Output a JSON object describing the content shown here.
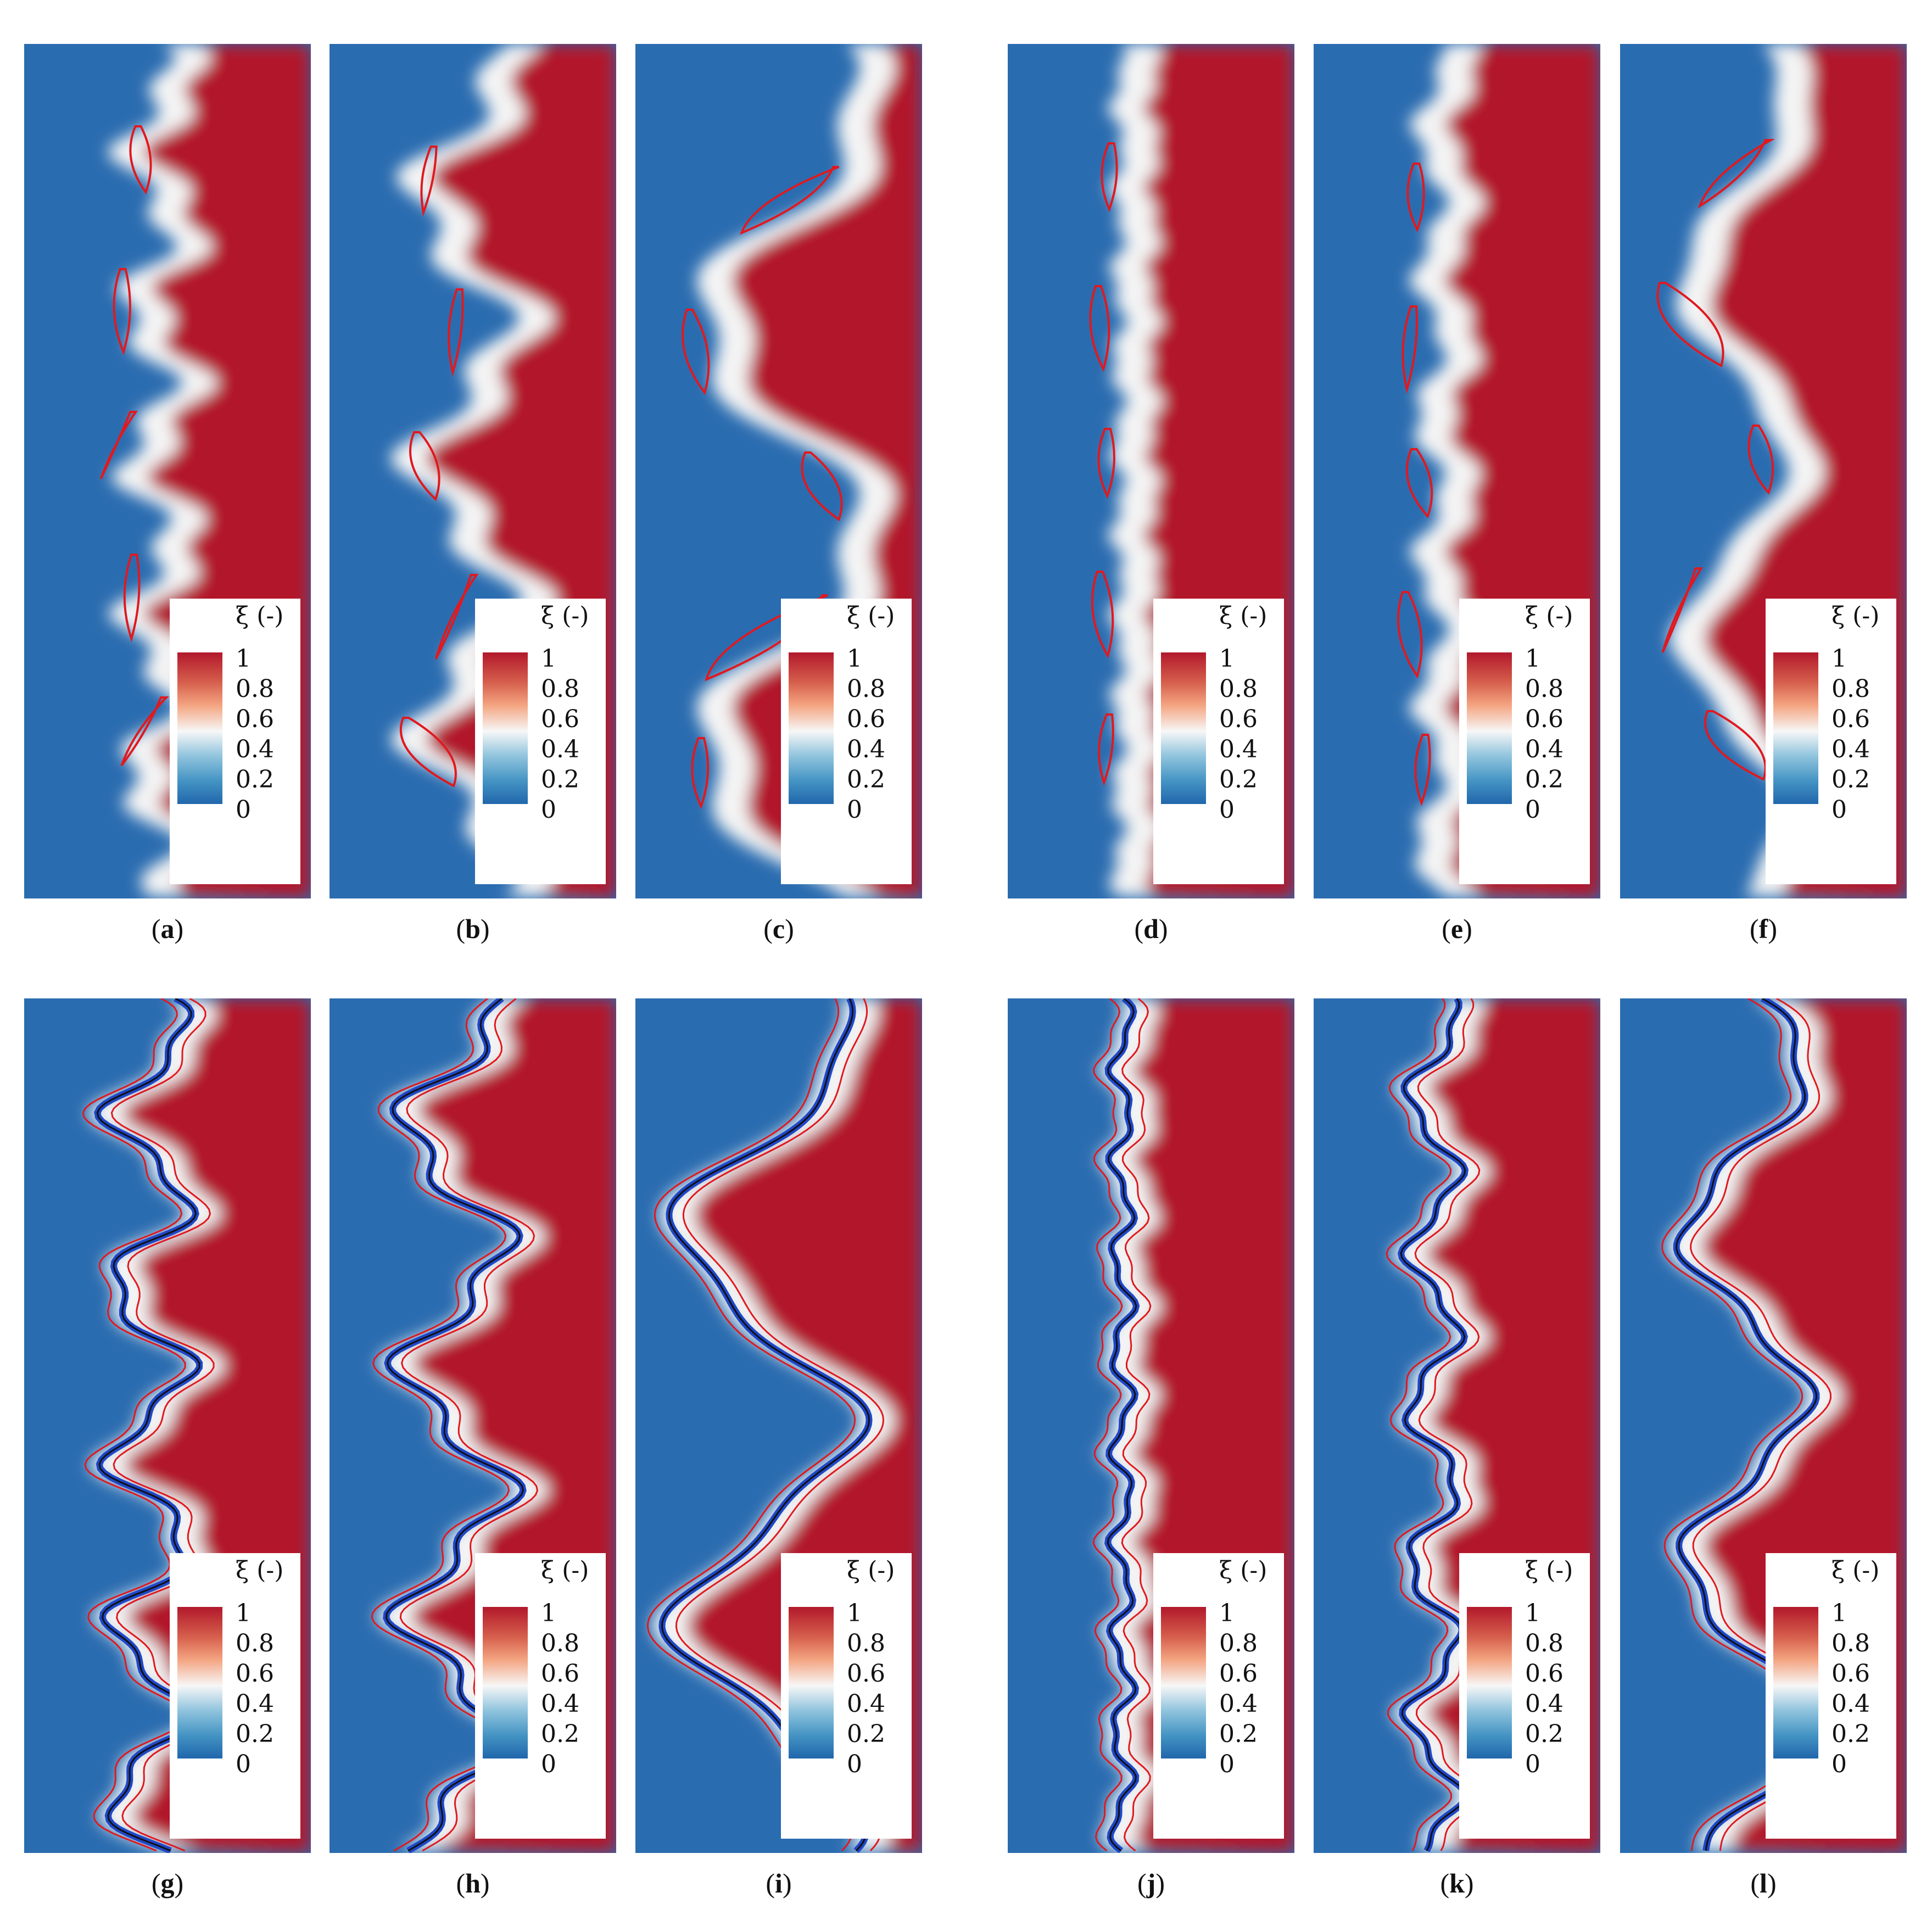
{
  "legend": {
    "title": "ξ (-)",
    "ticks": [
      "1",
      "0.8",
      "0.6",
      "0.4",
      "0.2",
      "0"
    ]
  },
  "colors": {
    "high": "#b2182b",
    "low": "#2a6cb0",
    "mid": "#f4f4f4",
    "contour_red": "#e0191f",
    "contour_black": "#111111",
    "contour_blue": "#1f47c8"
  },
  "panels": [
    {
      "id": "a",
      "caption_open": "(",
      "letter": "a",
      "caption_close": ")"
    },
    {
      "id": "b",
      "caption_open": "(",
      "letter": "b",
      "caption_close": ")"
    },
    {
      "id": "c",
      "caption_open": "(",
      "letter": "c",
      "caption_close": ")"
    },
    {
      "id": "d",
      "caption_open": "(",
      "letter": "d",
      "caption_close": ")"
    },
    {
      "id": "e",
      "caption_open": "(",
      "letter": "e",
      "caption_close": ")"
    },
    {
      "id": "f",
      "caption_open": "(",
      "letter": "f",
      "caption_close": ")"
    },
    {
      "id": "g",
      "caption_open": "(",
      "letter": "g",
      "caption_close": ")"
    },
    {
      "id": "h",
      "caption_open": "(",
      "letter": "h",
      "caption_close": ")"
    },
    {
      "id": "i",
      "caption_open": "(",
      "letter": "i",
      "caption_close": ")"
    },
    {
      "id": "j",
      "caption_open": "(",
      "letter": "j",
      "caption_close": ")"
    },
    {
      "id": "k",
      "caption_open": "(",
      "letter": "k",
      "caption_close": ")"
    },
    {
      "id": "l",
      "caption_open": "(",
      "letter": "l",
      "caption_close": ")"
    }
  ]
}
